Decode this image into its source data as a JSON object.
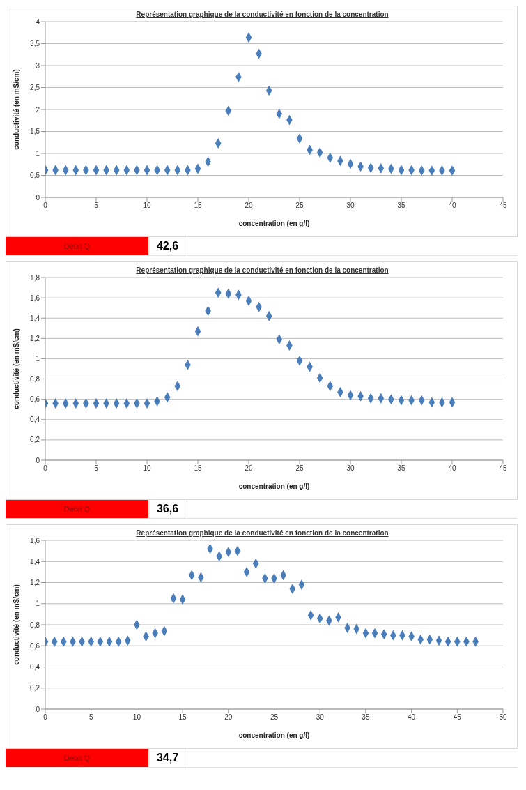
{
  "chart_data": [
    {
      "type": "scatter",
      "title": "Représentation graphique  de la conductivité  en fonction de la concentration",
      "xlabel": "concentration  (en g/l)",
      "ylabel": "conductivité  (en mS/cm)",
      "marker": "diamond",
      "grid": "y",
      "x": [
        0,
        1,
        2,
        3,
        4,
        5,
        6,
        7,
        8,
        9,
        10,
        11,
        12,
        13,
        14,
        15,
        16,
        17,
        18,
        19,
        20,
        21,
        22,
        23,
        24,
        25,
        26,
        27,
        28,
        29,
        30,
        31,
        32,
        33,
        34,
        35,
        36,
        37,
        38,
        39,
        40
      ],
      "series": [
        {
          "color": "#4a7ebb",
          "values": [
            0.62,
            0.62,
            0.62,
            0.62,
            0.62,
            0.62,
            0.62,
            0.62,
            0.62,
            0.62,
            0.62,
            0.62,
            0.62,
            0.62,
            0.62,
            0.65,
            0.81,
            1.23,
            1.97,
            2.74,
            3.64,
            3.27,
            2.43,
            1.9,
            1.76,
            1.34,
            1.08,
            1.02,
            0.9,
            0.83,
            0.76,
            0.7,
            0.67,
            0.66,
            0.65,
            0.62,
            0.62,
            0.61,
            0.61,
            0.61,
            0.61
          ]
        }
      ],
      "xlim": [
        0,
        45
      ],
      "xticks": [
        0,
        5,
        10,
        15,
        20,
        25,
        30,
        35,
        40,
        45
      ],
      "ylim": [
        0,
        4
      ],
      "yticks": [
        0,
        {
          "value": 0.5,
          "label": "0,5"
        },
        1,
        {
          "value": 1.5,
          "label": "1,5"
        },
        2,
        {
          "value": 2.5,
          "label": "2,5"
        },
        3,
        {
          "value": 3.5,
          "label": "3,5"
        },
        4
      ],
      "annotations": [
        "Débit Q",
        "42,6"
      ]
    },
    {
      "type": "scatter",
      "title": "Représentation  graphique de la conductivité en fonction de la concentration",
      "xlabel": "concentration (en g/l)",
      "ylabel": "conductivité (en mS/cm)",
      "marker": "diamond",
      "grid": "y",
      "x": [
        0,
        1,
        2,
        3,
        4,
        5,
        6,
        7,
        8,
        9,
        10,
        11,
        12,
        13,
        14,
        15,
        16,
        17,
        18,
        19,
        20,
        21,
        22,
        23,
        24,
        25,
        26,
        27,
        28,
        29,
        30,
        31,
        32,
        33,
        34,
        35,
        36,
        37,
        38,
        39,
        40
      ],
      "series": [
        {
          "color": "#4a7ebb",
          "values": [
            0.56,
            0.56,
            0.56,
            0.56,
            0.56,
            0.56,
            0.56,
            0.56,
            0.56,
            0.56,
            0.56,
            0.58,
            0.62,
            0.73,
            0.94,
            1.27,
            1.47,
            1.65,
            1.64,
            1.63,
            1.57,
            1.51,
            1.42,
            1.19,
            1.13,
            0.98,
            0.92,
            0.81,
            0.73,
            0.67,
            0.64,
            0.63,
            0.61,
            0.61,
            0.6,
            0.59,
            0.59,
            0.59,
            0.57,
            0.57,
            0.57
          ]
        }
      ],
      "xlim": [
        0,
        45
      ],
      "xticks": [
        0,
        5,
        10,
        15,
        20,
        25,
        30,
        35,
        40,
        45
      ],
      "ylim": [
        0,
        1.8
      ],
      "yticks": [
        0,
        {
          "value": 0.2,
          "label": "0,2"
        },
        {
          "value": 0.4,
          "label": "0,4"
        },
        {
          "value": 0.6,
          "label": "0,6"
        },
        {
          "value": 0.8,
          "label": "0,8"
        },
        1,
        {
          "value": 1.2,
          "label": "1,2"
        },
        {
          "value": 1.4,
          "label": "1,4"
        },
        {
          "value": 1.6,
          "label": "1,6"
        },
        {
          "value": 1.8,
          "label": "1,8"
        }
      ],
      "annotations": [
        "Débit Q",
        "36,6"
      ]
    },
    {
      "type": "scatter",
      "title": "Représentation graphique  de la conductivité  en fonction de la concentration",
      "xlabel": "concentration  (en g/l)",
      "ylabel": "conductivité  (en mS/cm)",
      "marker": "diamond",
      "grid": "y",
      "x": [
        0,
        1,
        2,
        3,
        4,
        5,
        6,
        7,
        8,
        9,
        10,
        11,
        12,
        13,
        14,
        15,
        16,
        17,
        18,
        19,
        20,
        21,
        22,
        23,
        24,
        25,
        26,
        27,
        28,
        29,
        30,
        31,
        32,
        33,
        34,
        35,
        36,
        37,
        38,
        39,
        40,
        41,
        42,
        43,
        44,
        45,
        46,
        47
      ],
      "series": [
        {
          "color": "#4a7ebb",
          "values": [
            0.64,
            0.64,
            0.64,
            0.64,
            0.64,
            0.64,
            0.64,
            0.64,
            0.64,
            0.65,
            0.8,
            0.69,
            0.72,
            0.74,
            1.05,
            1.04,
            1.27,
            1.25,
            1.52,
            1.45,
            1.49,
            1.5,
            1.3,
            1.38,
            1.24,
            1.24,
            1.27,
            1.14,
            1.18,
            0.89,
            0.86,
            0.84,
            0.87,
            0.77,
            0.76,
            0.72,
            0.72,
            0.71,
            0.7,
            0.7,
            0.69,
            0.66,
            0.66,
            0.65,
            0.64,
            0.64,
            0.64,
            0.64
          ]
        }
      ],
      "xlim": [
        0,
        50
      ],
      "xticks": [
        0,
        5,
        10,
        15,
        20,
        25,
        30,
        35,
        40,
        45,
        50
      ],
      "ylim": [
        0,
        1.6
      ],
      "yticks": [
        0,
        {
          "value": 0.2,
          "label": "0,2"
        },
        {
          "value": 0.4,
          "label": "0,4"
        },
        {
          "value": 0.6,
          "label": "0,6"
        },
        {
          "value": 0.8,
          "label": "0,8"
        },
        1,
        {
          "value": 1.2,
          "label": "1,2"
        },
        {
          "value": 1.4,
          "label": "1,4"
        },
        {
          "value": 1.6,
          "label": "1,6"
        }
      ],
      "annotations": [
        "Débit Q",
        "34,7"
      ]
    }
  ]
}
